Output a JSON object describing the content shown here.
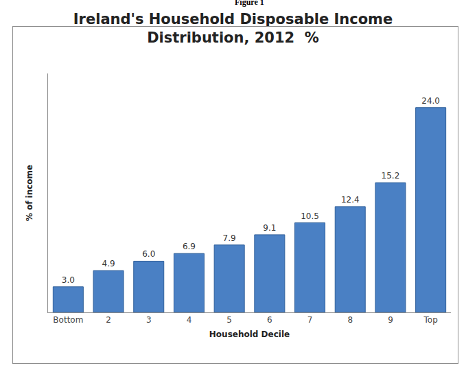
{
  "chart_data": {
    "type": "bar",
    "title": "Ireland's Household Disposable Income Distribution, 2012  %",
    "annotations": [
      "Figure 1"
    ],
    "x_label": "Household Decile",
    "y_label": "% of income",
    "categories": [
      "Bottom",
      "2",
      "3",
      "4",
      "5",
      "6",
      "7",
      "8",
      "9",
      "Top"
    ],
    "values": [
      3.0,
      4.9,
      6.0,
      6.9,
      7.9,
      9.1,
      10.5,
      12.4,
      15.2,
      24.0
    ],
    "value_labels": [
      "3.0",
      "4.9",
      "6.0",
      "6.9",
      "7.9",
      "9.1",
      "10.5",
      "12.4",
      "15.2",
      "24.0"
    ],
    "color": "#4a80c4",
    "ylim": [
      0,
      28
    ],
    "grid": false,
    "data_labels": true,
    "tick_labels": "x"
  }
}
